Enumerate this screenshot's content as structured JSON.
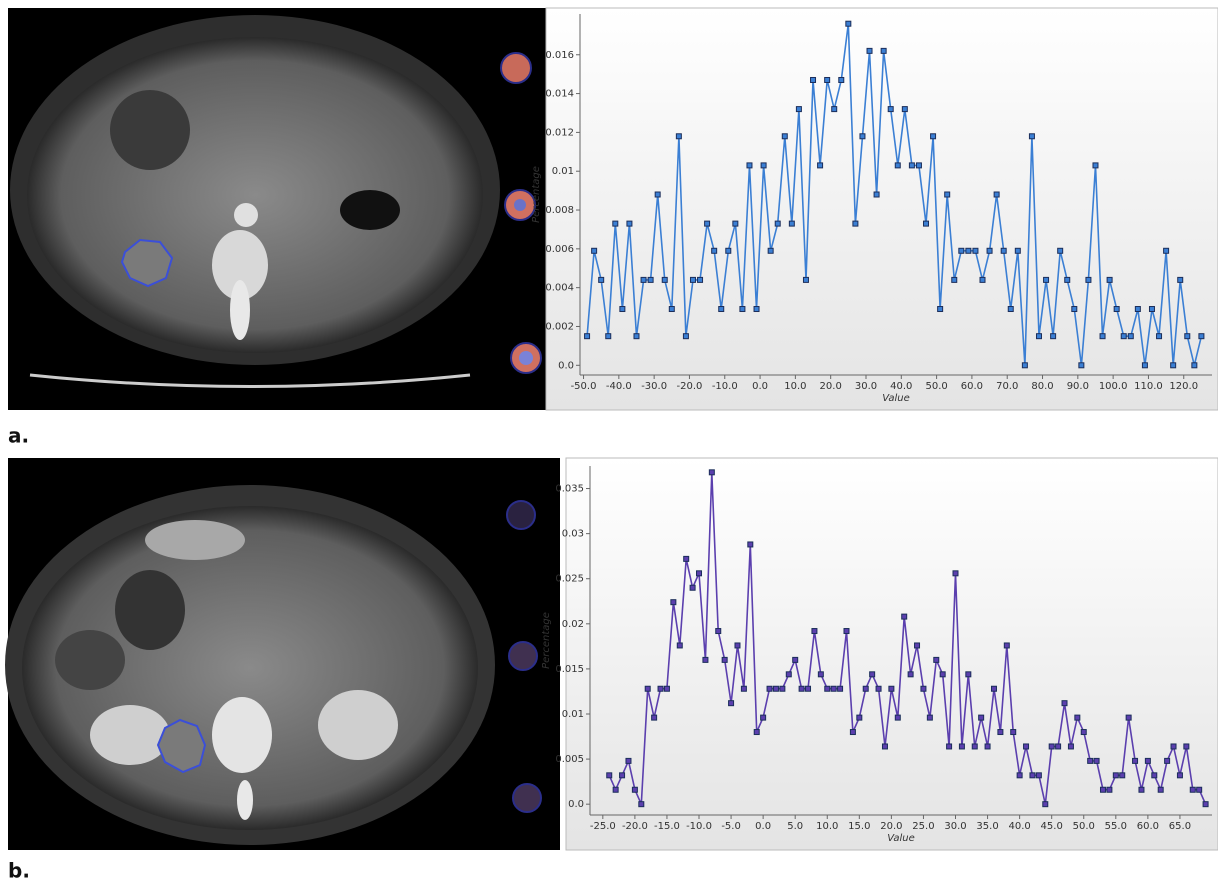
{
  "chart_data": [
    {
      "type": "line",
      "color": "#3b7fd4",
      "marker_color": "#1c2e5a",
      "x_label": "Value",
      "y_label": "Percentage",
      "xlim": [
        -51,
        128
      ],
      "ylim": [
        -0.0005,
        0.0181
      ],
      "xticks": [
        {
          "value": -50,
          "label": "-50.0"
        },
        {
          "value": -40,
          "label": "-40.0"
        },
        {
          "value": -30,
          "label": "-30.0"
        },
        {
          "value": -20,
          "label": "-20.0"
        },
        {
          "value": -10,
          "label": "-10.0"
        },
        {
          "value": 0,
          "label": "0.0"
        },
        {
          "value": 10,
          "label": "10.0"
        },
        {
          "value": 20,
          "label": "20.0"
        },
        {
          "value": 30,
          "label": "30.0"
        },
        {
          "value": 40,
          "label": "40.0"
        },
        {
          "value": 50,
          "label": "50.0"
        },
        {
          "value": 60,
          "label": "60.0"
        },
        {
          "value": 70,
          "label": "70.0"
        },
        {
          "value": 80,
          "label": "80.0"
        },
        {
          "value": 90,
          "label": "90.0"
        },
        {
          "value": 100,
          "label": "100.0"
        },
        {
          "value": 110,
          "label": "110.0"
        },
        {
          "value": 120,
          "label": "120.0"
        }
      ],
      "yticks": [
        {
          "value": 0,
          "label": "0.0"
        },
        0.002,
        0.004,
        0.006,
        0.008,
        0.01,
        0.012,
        0.014,
        0.016
      ],
      "x": [
        -49,
        -47,
        -45,
        -43,
        -41,
        -39,
        -37,
        -35,
        -33,
        -31,
        -29,
        -27,
        -25,
        -23,
        -21,
        -19,
        -17,
        -15,
        -13,
        -11,
        -9,
        -7,
        -5,
        -3,
        -1,
        1,
        3,
        5,
        7,
        9,
        11,
        13,
        15,
        17,
        19,
        21,
        23,
        25,
        27,
        29,
        31,
        33,
        35,
        37,
        39,
        41,
        43,
        45,
        47,
        49,
        51,
        53,
        55,
        57,
        59,
        61,
        63,
        65,
        67,
        69,
        71,
        73,
        75,
        77,
        79,
        81,
        83,
        85,
        87,
        89,
        91,
        93,
        95,
        97,
        99,
        101,
        103,
        105,
        107,
        109,
        111,
        113,
        115,
        117,
        119,
        121,
        123,
        125
      ],
      "values": [
        0.0015,
        0.0059,
        0.0044,
        0.0015,
        0.0073,
        0.0029,
        0.0073,
        0.0015,
        0.0044,
        0.0044,
        0.0088,
        0.0044,
        0.0029,
        0.0118,
        0.0015,
        0.0044,
        0.0044,
        0.0073,
        0.0059,
        0.0029,
        0.0059,
        0.0073,
        0.0029,
        0.0103,
        0.0029,
        0.0103,
        0.0059,
        0.0073,
        0.0118,
        0.0073,
        0.0132,
        0.0044,
        0.0147,
        0.0103,
        0.0147,
        0.0132,
        0.0147,
        0.0176,
        0.0073,
        0.0118,
        0.0162,
        0.0088,
        0.0162,
        0.0132,
        0.0103,
        0.0132,
        0.0103,
        0.0103,
        0.0073,
        0.0118,
        0.0029,
        0.0088,
        0.0044,
        0.0059,
        0.0059,
        0.0059,
        0.0044,
        0.0059,
        0.0088,
        0.0059,
        0.0029,
        0.0059,
        0,
        0.0118,
        0.0015,
        0.0044,
        0.0015,
        0.0059,
        0.0044,
        0.0029,
        0,
        0.0044,
        0.0103,
        0.0015,
        0.0044,
        0.0029,
        0.0015,
        0.0015,
        0.0029,
        0,
        0.0029,
        0.0015,
        0.0059,
        0,
        0.0044,
        0.0015,
        0,
        0.0015
      ]
    },
    {
      "type": "line",
      "color": "#5b3fae",
      "marker_color": "#1c2e5a",
      "x_label": "Value",
      "y_label": "Percentage",
      "xlim": [
        -27,
        70
      ],
      "ylim": [
        -0.0012,
        0.0375
      ],
      "xticks": [
        {
          "value": -25,
          "label": "-25.0"
        },
        {
          "value": -20,
          "label": "-20.0"
        },
        {
          "value": -15,
          "label": "-15.0"
        },
        {
          "value": -10,
          "label": "-10.0"
        },
        {
          "value": -5,
          "label": "-5.0"
        },
        {
          "value": 0,
          "label": "0.0"
        },
        {
          "value": 5,
          "label": "5.0"
        },
        {
          "value": 10,
          "label": "10.0"
        },
        {
          "value": 15,
          "label": "15.0"
        },
        {
          "value": 20,
          "label": "20.0"
        },
        {
          "value": 25,
          "label": "25.0"
        },
        {
          "value": 30,
          "label": "30.0"
        },
        {
          "value": 35,
          "label": "35.0"
        },
        {
          "value": 40,
          "label": "40.0"
        },
        {
          "value": 45,
          "label": "45.0"
        },
        {
          "value": 50,
          "label": "50.0"
        },
        {
          "value": 55,
          "label": "55.0"
        },
        {
          "value": 60,
          "label": "60.0"
        },
        {
          "value": 65,
          "label": "65.0"
        }
      ],
      "yticks": [
        {
          "value": 0,
          "label": "0.0"
        },
        0.005,
        0.01,
        0.015,
        0.02,
        0.025,
        0.03,
        0.035
      ],
      "x": [
        -24,
        -23,
        -22,
        -21,
        -20,
        -19,
        -18,
        -17,
        -16,
        -15,
        -14,
        -13,
        -12,
        -11,
        -10,
        -9,
        -8,
        -7,
        -6,
        -5,
        -4,
        -3,
        -2,
        -1,
        0,
        1,
        2,
        3,
        4,
        5,
        6,
        7,
        8,
        9,
        10,
        11,
        12,
        13,
        14,
        15,
        16,
        17,
        18,
        19,
        20,
        21,
        22,
        23,
        24,
        25,
        26,
        27,
        28,
        29,
        30,
        31,
        32,
        33,
        34,
        35,
        36,
        37,
        38,
        39,
        40,
        41,
        42,
        43,
        44,
        45,
        46,
        47,
        48,
        49,
        50,
        51,
        52,
        53,
        54,
        55,
        56,
        57,
        58,
        59,
        60,
        61,
        62,
        63,
        64,
        65,
        66,
        67,
        68,
        69
      ],
      "values": [
        0.0032,
        0.0016,
        0.0032,
        0.0048,
        0.0016,
        0,
        0.0128,
        0.0096,
        0.0128,
        0.0128,
        0.0224,
        0.0176,
        0.0272,
        0.024,
        0.0256,
        0.016,
        0.0368,
        0.0192,
        0.016,
        0.0112,
        0.0176,
        0.0128,
        0.0288,
        0.008,
        0.0096,
        0.0128,
        0.0128,
        0.0128,
        0.0144,
        0.016,
        0.0128,
        0.0128,
        0.0192,
        0.0144,
        0.0128,
        0.0128,
        0.0128,
        0.0192,
        0.008,
        0.0096,
        0.0128,
        0.0144,
        0.0128,
        0.0064,
        0.0128,
        0.0096,
        0.0208,
        0.0144,
        0.0176,
        0.0128,
        0.0096,
        0.016,
        0.0144,
        0.0064,
        0.0256,
        0.0064,
        0.0144,
        0.0064,
        0.0096,
        0.0064,
        0.0128,
        0.008,
        0.0176,
        0.008,
        0.0032,
        0.0064,
        0.0032,
        0.0032,
        0,
        0.0064,
        0.0064,
        0.0112,
        0.0064,
        0.0096,
        0.008,
        0.0048,
        0.0048,
        0.0016,
        0.0016,
        0.0032,
        0.0032,
        0.0096,
        0.0048,
        0.0016,
        0.0048,
        0.0032,
        0.0016,
        0.0048,
        0.0064,
        0.0032,
        0.0064,
        0.0016,
        0.0016,
        0
      ]
    }
  ],
  "panel_labels": [
    "a.",
    "b."
  ]
}
